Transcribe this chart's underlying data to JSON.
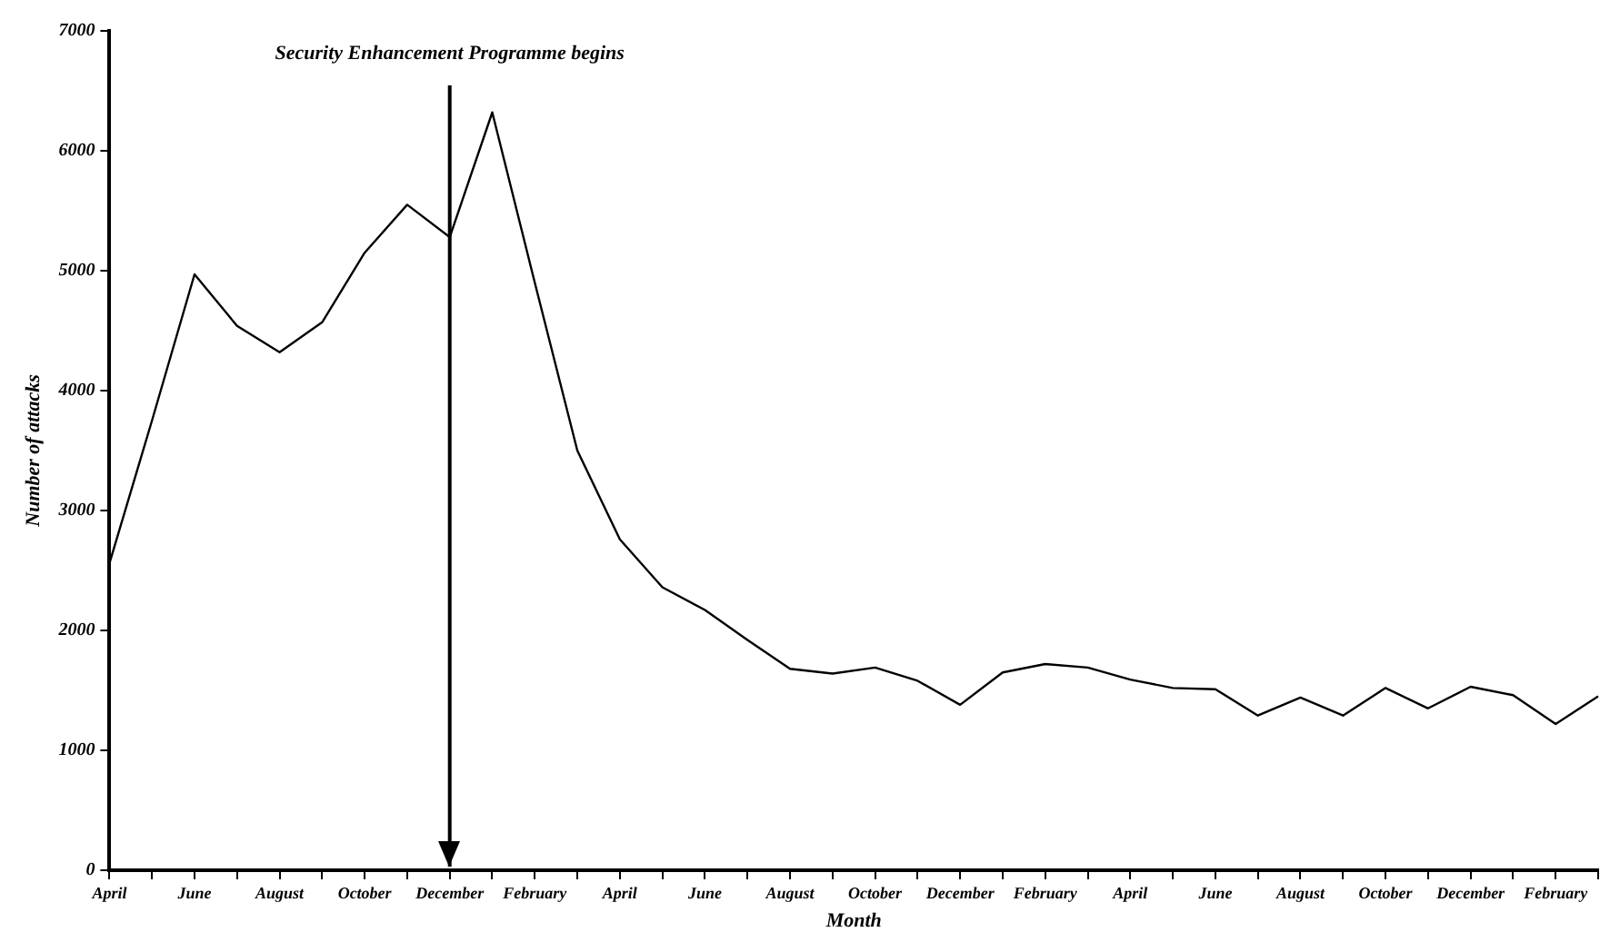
{
  "chart_data": {
    "type": "line",
    "xlabel": "Month",
    "ylabel": "Number of attacks",
    "categories": [
      "April",
      null,
      "June",
      null,
      "August",
      null,
      "October",
      null,
      "December",
      null,
      "February",
      null,
      "April",
      null,
      "June",
      null,
      "August",
      null,
      "October",
      null,
      "December",
      null,
      "February",
      null,
      "April",
      null,
      "June",
      null,
      "August",
      null,
      "October",
      null,
      "December",
      null,
      "February",
      null
    ],
    "series": [
      {
        "color": "#000000",
        "values": [
          2560,
          3750,
          4970,
          4540,
          4320,
          4570,
          5150,
          5550,
          5280,
          6320,
          4900,
          3500,
          2760,
          2360,
          2170,
          1920,
          1680,
          1640,
          1690,
          1580,
          1380,
          1650,
          1720,
          1690,
          1590,
          1520,
          1510,
          1290,
          1440,
          1290,
          1520,
          1350,
          1530,
          1460,
          1220,
          1450
        ]
      }
    ],
    "ylim": [
      0,
      7000
    ],
    "yticks": [
      0,
      1000,
      2000,
      3000,
      4000,
      5000,
      6000,
      7000
    ],
    "ref_lines": [
      {
        "axis": "x",
        "value": "December",
        "label": "Security Enhancement Programme begins",
        "color": "#000000",
        "line_style": "solid"
      }
    ],
    "grid": false,
    "legend": false,
    "marker": "none",
    "line_style": "solid"
  }
}
